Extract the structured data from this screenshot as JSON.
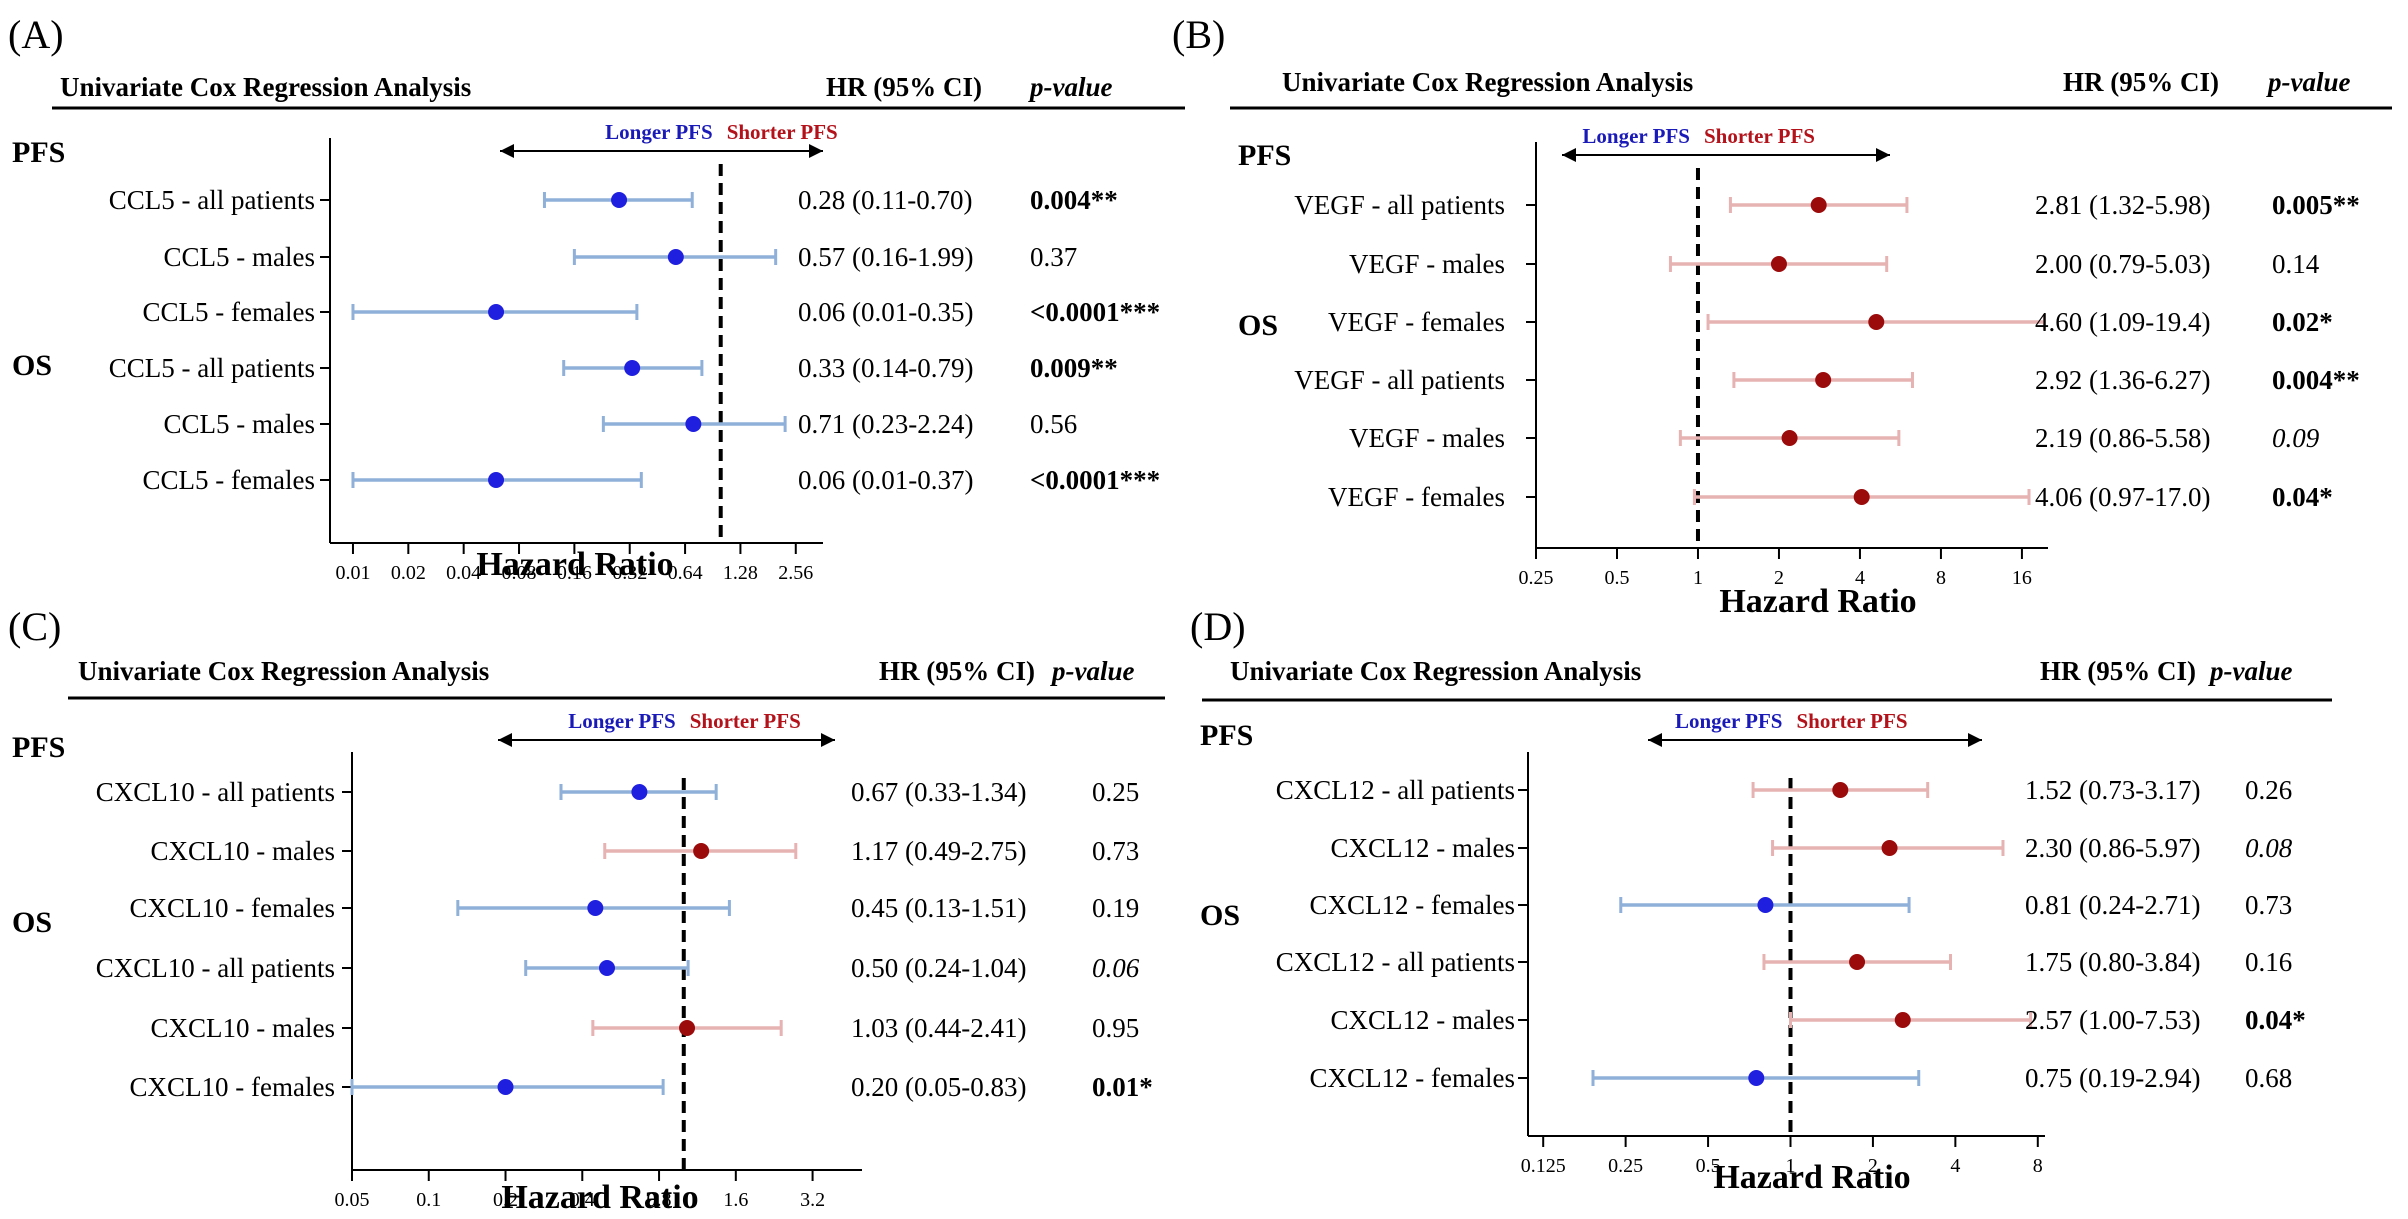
{
  "figure": {
    "xlabel": "Hazard Ratio"
  },
  "colors": {
    "blue_point": "#1f1fe0",
    "blue_ci": "#8fb0d8",
    "red_point": "#9b0b0b",
    "red_ci": "#e6b2b2",
    "longer_text": "#1a1ab8",
    "shorter_text": "#b3121a",
    "ink": "#000000"
  },
  "chart_data": [
    {
      "type": "forest",
      "panel_label": "(A)",
      "title": "Univariate Cox Regression Analysis",
      "col_hr": "HR (95% CI)",
      "col_p": "p-value",
      "longer_label": "Longer PFS",
      "shorter_label": "Shorter PFS",
      "xlabel": "Hazard Ratio",
      "xticks": [
        0.01,
        0.02,
        0.04,
        0.08,
        0.16,
        0.32,
        0.64,
        1.28,
        2.56
      ],
      "xtick_labels": [
        "0.01",
        "0.02",
        "0.04",
        "0.08",
        "0.16",
        "0.32",
        "0.64",
        "1.28",
        "2.56"
      ],
      "xlim": [
        0.0075,
        3.6
      ],
      "sections": [
        {
          "label": "PFS",
          "before_row": 0
        },
        {
          "label": "OS",
          "before_row": 3
        }
      ],
      "rows": [
        {
          "label": "CCL5 - all patients",
          "hr": 0.28,
          "lo": 0.11,
          "hi": 0.7,
          "hr_text": "0.28 (0.11-0.70)",
          "p_text": "0.004**",
          "p_style": "bold"
        },
        {
          "label": "CCL5 - males",
          "hr": 0.57,
          "lo": 0.16,
          "hi": 1.99,
          "hr_text": "0.57 (0.16-1.99)",
          "p_text": "0.37",
          "p_style": "normal"
        },
        {
          "label": "CCL5 - females",
          "hr": 0.06,
          "lo": 0.01,
          "hi": 0.35,
          "hr_text": "0.06 (0.01-0.35)",
          "p_text": "<0.0001***",
          "p_style": "bold"
        },
        {
          "label": "CCL5 - all patients",
          "hr": 0.33,
          "lo": 0.14,
          "hi": 0.79,
          "hr_text": "0.33 (0.14-0.79)",
          "p_text": "0.009**",
          "p_style": "bold"
        },
        {
          "label": "CCL5 - males",
          "hr": 0.71,
          "lo": 0.23,
          "hi": 2.24,
          "hr_text": "0.71 (0.23-2.24)",
          "p_text": "0.56",
          "p_style": "normal"
        },
        {
          "label": "CCL5 - females",
          "hr": 0.06,
          "lo": 0.01,
          "hi": 0.37,
          "hr_text": "0.06 (0.01-0.37)",
          "p_text": "<0.0001***",
          "p_style": "bold"
        }
      ]
    },
    {
      "type": "forest",
      "panel_label": "(B)",
      "title": "Univariate Cox Regression Analysis",
      "col_hr": "HR (95% CI)",
      "col_p": "p-value",
      "longer_label": "Longer PFS",
      "shorter_label": "Shorter PFS",
      "xlabel": "Hazard Ratio",
      "xticks": [
        0.25,
        0.5,
        1,
        2,
        4,
        8,
        16
      ],
      "xtick_labels": [
        "0.25",
        "0.5",
        "1",
        "2",
        "4",
        "8",
        "16"
      ],
      "xlim": [
        0.25,
        20
      ],
      "sections": [
        {
          "label": "PFS",
          "before_row": 0
        },
        {
          "label": "OS",
          "before_row": 3
        }
      ],
      "rows": [
        {
          "label": "VEGF - all patients",
          "hr": 2.81,
          "lo": 1.32,
          "hi": 5.98,
          "hr_text": "2.81 (1.32-5.98)",
          "p_text": "0.005**",
          "p_style": "bold"
        },
        {
          "label": "VEGF - males",
          "hr": 2.0,
          "lo": 0.79,
          "hi": 5.03,
          "hr_text": "2.00 (0.79-5.03)",
          "p_text": "0.14",
          "p_style": "normal"
        },
        {
          "label": "VEGF - females",
          "hr": 4.6,
          "lo": 1.09,
          "hi": 19.4,
          "hr_text": "4.60 (1.09-19.4)",
          "p_text": "0.02*",
          "p_style": "bold"
        },
        {
          "label": "VEGF - all patients",
          "hr": 2.92,
          "lo": 1.36,
          "hi": 6.27,
          "hr_text": "2.92 (1.36-6.27)",
          "p_text": "0.004**",
          "p_style": "bold"
        },
        {
          "label": "VEGF - males",
          "hr": 2.19,
          "lo": 0.86,
          "hi": 5.58,
          "hr_text": "2.19 (0.86-5.58)",
          "p_text": "0.09",
          "p_style": "italic"
        },
        {
          "label": "VEGF - females",
          "hr": 4.06,
          "lo": 0.97,
          "hi": 17.0,
          "hr_text": "4.06 (0.97-17.0)",
          "p_text": "0.04*",
          "p_style": "bold"
        }
      ]
    },
    {
      "type": "forest",
      "panel_label": "(C)",
      "title": "Univariate Cox Regression Analysis",
      "col_hr": "HR (95% CI)",
      "col_p": "p-value",
      "longer_label": "Longer PFS",
      "shorter_label": "Shorter PFS",
      "xlabel": "Hazard Ratio",
      "xticks": [
        0.05,
        0.1,
        0.2,
        0.4,
        0.8,
        1.6,
        3.2
      ],
      "xtick_labels": [
        "0.05",
        "0.1",
        "0.2",
        "0.4",
        "0.8",
        "1.6",
        "3.2"
      ],
      "xlim": [
        0.05,
        5
      ],
      "sections": [
        {
          "label": "PFS",
          "before_row": 0
        },
        {
          "label": "OS",
          "before_row": 3
        }
      ],
      "rows": [
        {
          "label": "CXCL10 - all patients",
          "hr": 0.67,
          "lo": 0.33,
          "hi": 1.34,
          "hr_text": "0.67 (0.33-1.34)",
          "p_text": "0.25",
          "p_style": "normal"
        },
        {
          "label": "CXCL10 - males",
          "hr": 1.17,
          "lo": 0.49,
          "hi": 2.75,
          "hr_text": "1.17 (0.49-2.75)",
          "p_text": "0.73",
          "p_style": "normal"
        },
        {
          "label": "CXCL10 - females",
          "hr": 0.45,
          "lo": 0.13,
          "hi": 1.51,
          "hr_text": "0.45 (0.13-1.51)",
          "p_text": "0.19",
          "p_style": "normal"
        },
        {
          "label": "CXCL10 - all patients",
          "hr": 0.5,
          "lo": 0.24,
          "hi": 1.04,
          "hr_text": "0.50 (0.24-1.04)",
          "p_text": "0.06",
          "p_style": "italic"
        },
        {
          "label": "CXCL10 - males",
          "hr": 1.03,
          "lo": 0.44,
          "hi": 2.41,
          "hr_text": "1.03 (0.44-2.41)",
          "p_text": "0.95",
          "p_style": "normal"
        },
        {
          "label": "CXCL10 - females",
          "hr": 0.2,
          "lo": 0.05,
          "hi": 0.83,
          "hr_text": "0.20 (0.05-0.83)",
          "p_text": "0.01*",
          "p_style": "bold"
        }
      ]
    },
    {
      "type": "forest",
      "panel_label": "(D)",
      "title": "Univariate Cox Regression Analysis",
      "col_hr": "HR (95% CI)",
      "col_p": "p-value",
      "longer_label": "Longer PFS",
      "shorter_label": "Shorter PFS",
      "xlabel": "Hazard Ratio",
      "xticks": [
        0.125,
        0.25,
        0.5,
        1,
        2,
        4,
        8
      ],
      "xtick_labels": [
        "0.125",
        "0.25",
        "0.5",
        "1",
        "2",
        "4",
        "8"
      ],
      "xlim": [
        0.11,
        8.5
      ],
      "sections": [
        {
          "label": "PFS",
          "before_row": 0
        },
        {
          "label": "OS",
          "before_row": 3
        }
      ],
      "rows": [
        {
          "label": "CXCL12 - all patients",
          "hr": 1.52,
          "lo": 0.73,
          "hi": 3.17,
          "hr_text": "1.52 (0.73-3.17)",
          "p_text": "0.26",
          "p_style": "normal"
        },
        {
          "label": "CXCL12 - males",
          "hr": 2.3,
          "lo": 0.86,
          "hi": 5.97,
          "hr_text": "2.30 (0.86-5.97)",
          "p_text": "0.08",
          "p_style": "italic"
        },
        {
          "label": "CXCL12 - females",
          "hr": 0.81,
          "lo": 0.24,
          "hi": 2.71,
          "hr_text": "0.81 (0.24-2.71)",
          "p_text": "0.73",
          "p_style": "normal"
        },
        {
          "label": "CXCL12 - all patients",
          "hr": 1.75,
          "lo": 0.8,
          "hi": 3.84,
          "hr_text": "1.75 (0.80-3.84)",
          "p_text": "0.16",
          "p_style": "normal"
        },
        {
          "label": "CXCL12 - males",
          "hr": 2.57,
          "lo": 1.0,
          "hi": 7.53,
          "hr_text": "2.57 (1.00-7.53)",
          "p_text": "0.04*",
          "p_style": "bold"
        },
        {
          "label": "CXCL12 - females",
          "hr": 0.75,
          "lo": 0.19,
          "hi": 2.94,
          "hr_text": "0.75 (0.19-2.94)",
          "p_text": "0.68",
          "p_style": "normal"
        }
      ]
    }
  ]
}
